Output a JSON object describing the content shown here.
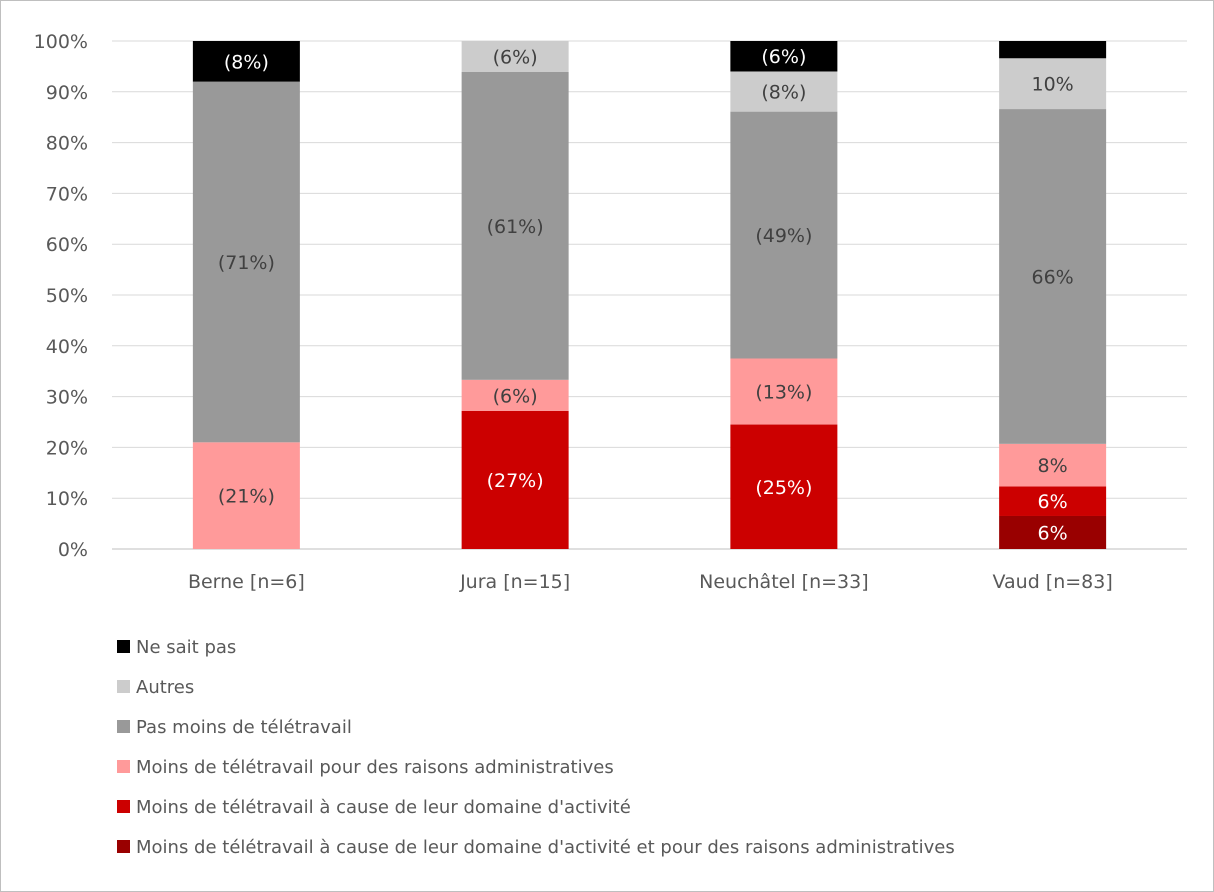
{
  "chart_data": {
    "type": "bar",
    "stacked": true,
    "orientation": "vertical",
    "title": "",
    "xlabel": "",
    "ylabel": "",
    "ylim": [
      0,
      100
    ],
    "y_ticks": [
      "0%",
      "10%",
      "20%",
      "30%",
      "40%",
      "50%",
      "60%",
      "70%",
      "80%",
      "90%",
      "100%"
    ],
    "grid": true,
    "legend_position": "bottom-left",
    "categories": [
      "Berne [n=6]",
      "Jura [n=15]",
      "Neuchâtel [n=33]",
      "Vaud [n=83]"
    ],
    "series": [
      {
        "name": "Moins de télétravail à cause de leur domaine d'activité et pour des raisons administratives",
        "color": "#990000",
        "label_color": "#ffffff",
        "values": [
          0,
          0,
          0,
          6.5
        ],
        "labels": [
          "",
          "",
          "",
          "6%"
        ]
      },
      {
        "name": "Moins de télétravail à cause de leur domaine d'activité",
        "color": "#cc0000",
        "label_color": "#ffffff",
        "values": [
          0,
          27.2,
          24.5,
          5.8
        ],
        "labels": [
          "",
          "(27%)",
          "(25%)",
          "6%"
        ]
      },
      {
        "name": "Moins de télétravail pour des raisons administratives",
        "color": "#ff9a9a",
        "label_color": "#404040",
        "values": [
          21,
          6.1,
          13,
          8.4
        ],
        "labels": [
          "(21%)",
          "(6%)",
          "(13%)",
          "8%"
        ]
      },
      {
        "name": "Pas moins de télétravail",
        "color": "#999999",
        "label_color": "#404040",
        "values": [
          71,
          60.6,
          48.6,
          65.9
        ],
        "labels": [
          "(71%)",
          "(61%)",
          "(49%)",
          "66%"
        ]
      },
      {
        "name": "Autres",
        "color": "#cccccc",
        "label_color": "#404040",
        "values": [
          0,
          6.1,
          7.9,
          10
        ],
        "labels": [
          "",
          "(6%)",
          "(8%)",
          "10%"
        ]
      },
      {
        "name": "Ne sait pas",
        "color": "#000000",
        "label_color": "#ffffff",
        "values": [
          8,
          0,
          6,
          3.4
        ],
        "labels": [
          "(8%)",
          "",
          "(6%)",
          ""
        ]
      }
    ],
    "legend_order": [
      "Ne sait pas",
      "Autres",
      "Pas moins de télétravail",
      "Moins de télétravail pour des raisons administratives",
      "Moins de télétravail à cause de leur domaine d'activité",
      "Moins de télétravail à cause de leur domaine d'activité et pour des raisons administratives"
    ]
  }
}
